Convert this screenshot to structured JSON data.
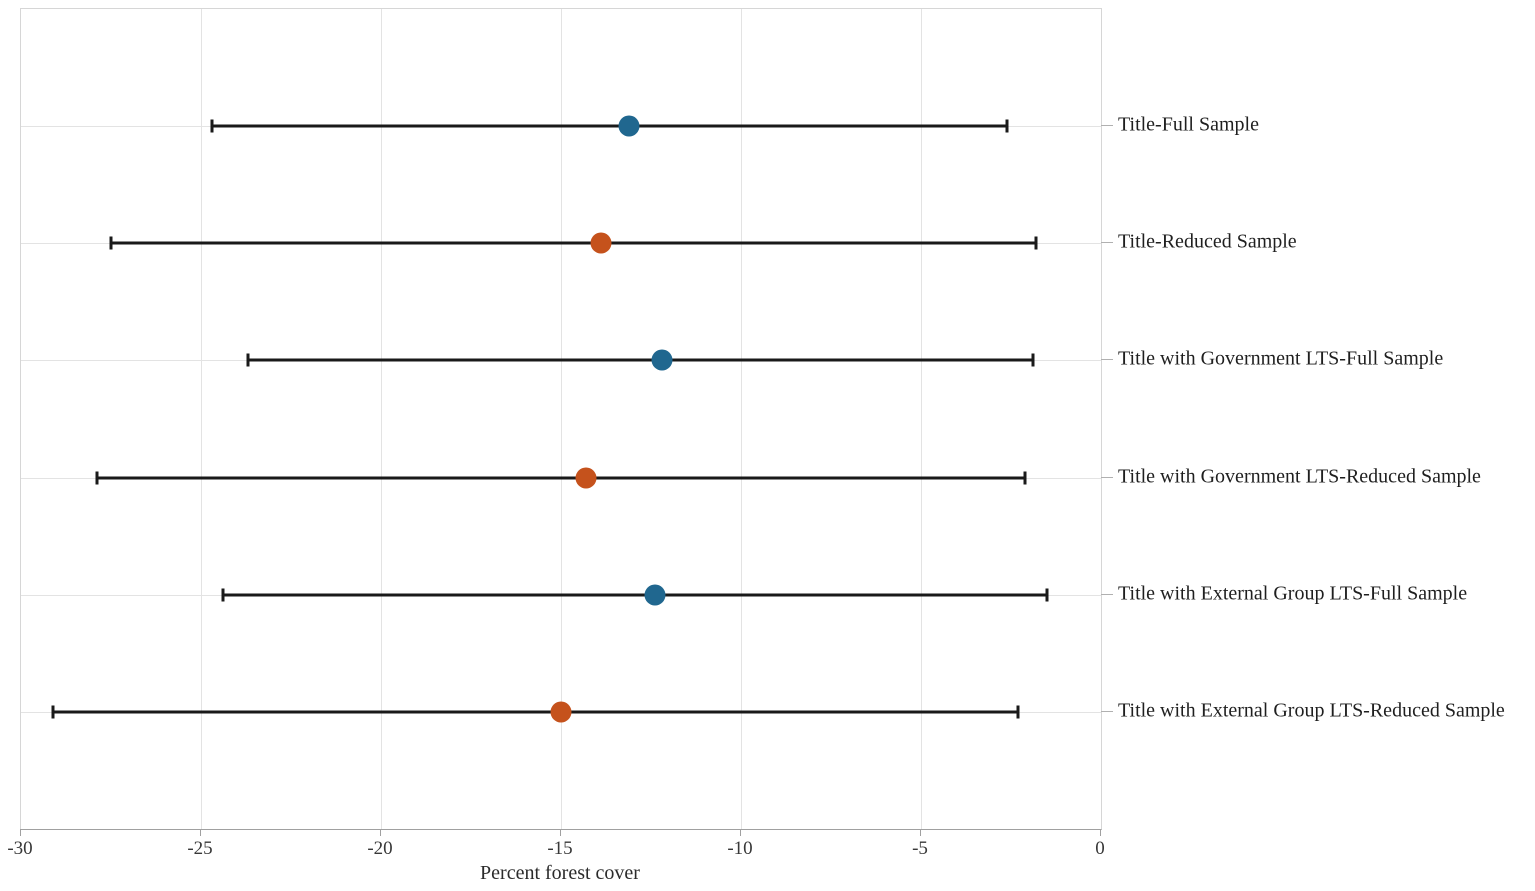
{
  "chart_data": {
    "type": "scatter",
    "subtype": "dot-and-whisker coefficient plot",
    "title": "",
    "xlabel": "Percent forest cover",
    "ylabel": "",
    "xlim": [
      -30,
      0
    ],
    "x_ticks": [
      -30,
      -25,
      -20,
      -15,
      -10,
      -5,
      0
    ],
    "x_tick_labels": [
      "-30",
      "-25",
      "-20",
      "-15",
      "-10",
      "-5",
      "0"
    ],
    "grid": true,
    "legend_position": "none",
    "colors": {
      "full_sample_dot": "#20678f",
      "reduced_sample_dot": "#c5521c",
      "error_bar": "#1a1a1a",
      "gridline": "#e3e3e3"
    },
    "series": [
      {
        "label": "Title-Full Sample",
        "estimate": -13.1,
        "ci_low": -24.7,
        "ci_high": -2.6,
        "group": "full_sample"
      },
      {
        "label": "Title-Reduced Sample",
        "estimate": -13.9,
        "ci_low": -27.5,
        "ci_high": -1.8,
        "group": "reduced_sample"
      },
      {
        "label": "Title with Government LTS-Full Sample",
        "estimate": -12.2,
        "ci_low": -23.7,
        "ci_high": -1.9,
        "group": "full_sample"
      },
      {
        "label": "Title with Government LTS-Reduced Sample",
        "estimate": -14.3,
        "ci_low": -27.9,
        "ci_high": -2.1,
        "group": "reduced_sample"
      },
      {
        "label": "Title with External Group LTS-Full Sample",
        "estimate": -12.4,
        "ci_low": -24.4,
        "ci_high": -1.5,
        "group": "full_sample"
      },
      {
        "label": "Title with External Group LTS-Reduced Sample",
        "estimate": -15.0,
        "ci_low": -29.1,
        "ci_high": -2.3,
        "group": "reduced_sample"
      }
    ]
  }
}
